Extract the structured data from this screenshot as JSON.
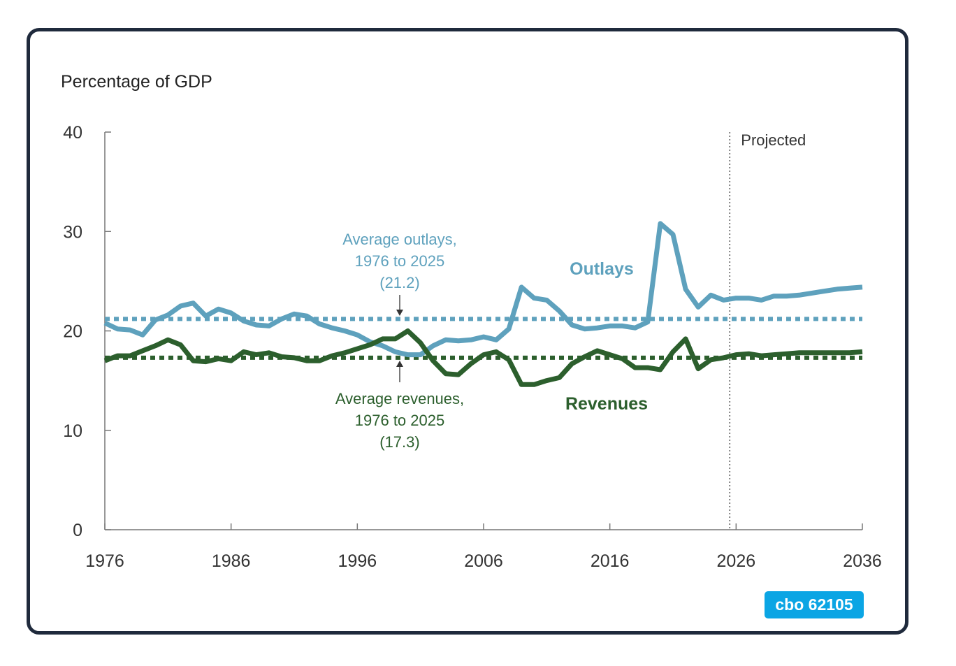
{
  "chart_data": {
    "type": "line",
    "ylabel": "Percentage of GDP",
    "ylim": [
      0,
      40
    ],
    "xlim": [
      1976,
      2036
    ],
    "yticks": [
      "0",
      "10",
      "20",
      "30",
      "40"
    ],
    "xticks": [
      "1976",
      "1986",
      "1996",
      "2006",
      "2016",
      "2026",
      "2036"
    ],
    "grid": false,
    "projected_label": "Projected",
    "projected_start": 2025.5,
    "x": [
      1976,
      1977,
      1978,
      1979,
      1980,
      1981,
      1982,
      1983,
      1984,
      1985,
      1986,
      1987,
      1988,
      1989,
      1990,
      1991,
      1992,
      1993,
      1994,
      1995,
      1996,
      1997,
      1998,
      1999,
      2000,
      2001,
      2002,
      2003,
      2004,
      2005,
      2006,
      2007,
      2008,
      2009,
      2010,
      2011,
      2012,
      2013,
      2014,
      2015,
      2016,
      2017,
      2018,
      2019,
      2020,
      2021,
      2022,
      2023,
      2024,
      2025,
      2026,
      2027,
      2028,
      2029,
      2030,
      2031,
      2032,
      2033,
      2034,
      2035,
      2036
    ],
    "series": [
      {
        "name": "Outlays",
        "color": "#5ea1bd",
        "values": [
          20.8,
          20.2,
          20.1,
          19.6,
          21.1,
          21.6,
          22.5,
          22.8,
          21.5,
          22.2,
          21.8,
          21.0,
          20.6,
          20.5,
          21.2,
          21.7,
          21.5,
          20.7,
          20.3,
          20.0,
          19.6,
          18.9,
          18.5,
          17.9,
          17.6,
          17.6,
          18.5,
          19.1,
          19.0,
          19.1,
          19.4,
          19.1,
          20.2,
          24.4,
          23.3,
          23.1,
          22.0,
          20.6,
          20.2,
          20.3,
          20.5,
          20.5,
          20.3,
          20.9,
          30.8,
          29.7,
          24.2,
          22.4,
          23.6,
          23.1,
          23.3,
          23.3,
          23.1,
          23.5,
          23.5,
          23.6,
          23.8,
          24.0,
          24.2,
          24.3,
          24.4
        ]
      },
      {
        "name": "Revenues",
        "color": "#2c5f2d",
        "values": [
          17.0,
          17.5,
          17.5,
          18.0,
          18.5,
          19.1,
          18.6,
          17.0,
          16.9,
          17.2,
          17.0,
          17.9,
          17.6,
          17.8,
          17.4,
          17.3,
          17.0,
          17.0,
          17.5,
          17.8,
          18.2,
          18.6,
          19.2,
          19.2,
          20.0,
          18.8,
          17.0,
          15.7,
          15.6,
          16.7,
          17.6,
          17.9,
          17.1,
          14.6,
          14.6,
          15.0,
          15.3,
          16.7,
          17.4,
          18.0,
          17.6,
          17.2,
          16.3,
          16.3,
          16.1,
          17.9,
          19.2,
          16.2,
          17.1,
          17.3,
          17.6,
          17.7,
          17.5,
          17.6,
          17.7,
          17.8,
          17.8,
          17.8,
          17.8,
          17.8,
          17.9
        ]
      }
    ],
    "averages": [
      {
        "value": 21.2,
        "color": "#5ea1bd",
        "label": [
          "Average outlays,",
          "1976 to 2025",
          "(21.2)"
        ]
      },
      {
        "value": 17.3,
        "color": "#2c5f2d",
        "label": [
          "Average revenues,",
          "1976 to 2025",
          "(17.3)"
        ]
      }
    ]
  },
  "badge": "cbo 62105"
}
